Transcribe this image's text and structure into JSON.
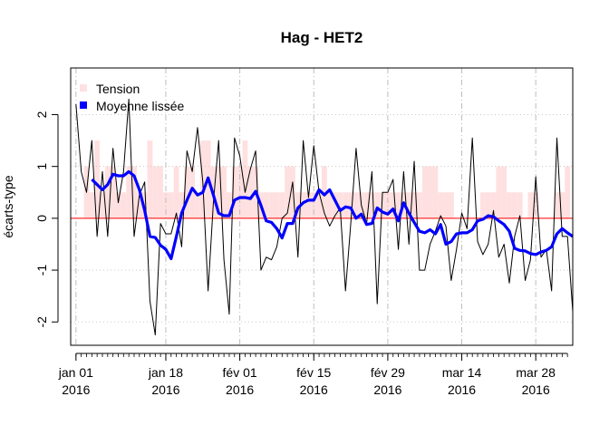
{
  "chart_data": {
    "type": "line",
    "title": "Hag - HET2",
    "xlabel": "",
    "ylabel": "écarts-type",
    "x_type": "date",
    "xlim": [
      "2015-12-31",
      "2016-04-04"
    ],
    "ylim": [
      -2.45,
      2.9
    ],
    "y_ticks": [
      -2,
      -1,
      0,
      1,
      2
    ],
    "x_ticks": [
      {
        "date": "2016-01-01",
        "label": "jan 01",
        "year": "2016"
      },
      {
        "date": "2016-01-18",
        "label": "jan 18",
        "year": "2016"
      },
      {
        "date": "2016-02-01",
        "label": "fév 01",
        "year": "2016"
      },
      {
        "date": "2016-02-15",
        "label": "fév 15",
        "year": "2016"
      },
      {
        "date": "2016-02-29",
        "label": "fév 29",
        "year": "2016"
      },
      {
        "date": "2016-03-14",
        "label": "mar 14",
        "year": "2016"
      },
      {
        "date": "2016-03-28",
        "label": "mar 28",
        "year": "2016"
      }
    ],
    "grid": true,
    "reference_line": {
      "y": 0,
      "color": "#ff0000"
    },
    "legend": {
      "position": "top-left",
      "entries": [
        "Tension",
        "Moyenne lissée"
      ]
    },
    "series": [
      {
        "name": "Tension",
        "kind": "bars",
        "color": "#ffe0e0",
        "start_date": "2016-01-01",
        "values": [
          0.0,
          0.0,
          1.0,
          0.5,
          1.5,
          0.5,
          1.0,
          1.0,
          0.5,
          0.5,
          1.0,
          1.0,
          0.5,
          0.5,
          1.5,
          1.0,
          1.0,
          0.5,
          0.5,
          1.0,
          0.5,
          1.0,
          1.0,
          0.5,
          1.5,
          1.5,
          1.0,
          1.0,
          1.0,
          0.5,
          1.0,
          1.0,
          1.5,
          1.0,
          1.0,
          0.5,
          0.5,
          0.5,
          0.5,
          0.5,
          1.0,
          1.0,
          0.5,
          0.5,
          0.5,
          0.5,
          0.5,
          1.0,
          0.5,
          0.5,
          0.5,
          0.5,
          0.5,
          0.5,
          0.5,
          0.5,
          0.5,
          0.5,
          0.5,
          0.5,
          0.5,
          0.5,
          0.5,
          0.5,
          0.5,
          0.5,
          1.0,
          1.0,
          1.0,
          0.5,
          0.5,
          0.5,
          0.0,
          0.0,
          0.0,
          0.0,
          0.0,
          0.5,
          0.5,
          0.5,
          1.0,
          1.0,
          0.5,
          0.5,
          0.5,
          0.0,
          0.5,
          0.5,
          0.0,
          0.0,
          0.0,
          0.5,
          0.5,
          1.0,
          0.0,
          0.0,
          0.0,
          0.0
        ]
      },
      {
        "name": "",
        "kind": "line",
        "color": "#000000",
        "start_date": "2016-01-01",
        "values": [
          2.2,
          0.9,
          0.5,
          1.5,
          -0.35,
          0.9,
          -0.35,
          1.35,
          0.3,
          0.9,
          2.3,
          -0.35,
          0.45,
          0.7,
          -1.6,
          -2.25,
          -0.1,
          -0.3,
          -0.3,
          0.1,
          -0.55,
          1.3,
          0.9,
          1.75,
          0.7,
          -1.4,
          0.3,
          1.5,
          -0.8,
          -1.85,
          1.55,
          1.2,
          0.5,
          0.95,
          1.3,
          -1.0,
          -0.75,
          -0.8,
          -0.55,
          0.0,
          0.1,
          0.7,
          -0.75,
          1.5,
          0.4,
          1.4,
          0.5,
          0.1,
          -0.15,
          0.05,
          0.2,
          -1.4,
          -0.1,
          1.35,
          0.25,
          -0.1,
          0.9,
          -1.65,
          0.5,
          0.5,
          0.75,
          -0.6,
          0.9,
          -0.5,
          1.1,
          -1.0,
          -1.0,
          -0.5,
          -0.25,
          0.05,
          -0.15,
          -1.2,
          -0.6,
          0.1,
          -0.2,
          1.55,
          -0.45,
          -0.7,
          -0.5,
          0.15,
          -0.75,
          -0.5,
          -1.25,
          -0.35,
          0.05,
          -1.2,
          -0.8,
          0.8,
          -0.75,
          -0.6,
          -1.4,
          1.55,
          -0.35,
          -0.35,
          -1.8
        ]
      },
      {
        "name": "Moyenne lissée",
        "kind": "line",
        "color": "#0000ff",
        "start_date": "2016-01-04",
        "values": [
          0.75,
          0.65,
          0.55,
          0.65,
          0.85,
          0.82,
          0.82,
          0.9,
          0.82,
          0.55,
          0.15,
          -0.35,
          -0.37,
          -0.52,
          -0.6,
          -0.78,
          -0.35,
          0.1,
          0.35,
          0.58,
          0.45,
          0.5,
          0.78,
          0.45,
          0.1,
          0.05,
          0.05,
          0.35,
          0.4,
          0.4,
          0.38,
          0.52,
          0.25,
          -0.05,
          -0.08,
          -0.2,
          -0.38,
          -0.1,
          -0.1,
          0.2,
          0.3,
          0.35,
          0.35,
          0.55,
          0.45,
          0.55,
          0.35,
          0.15,
          0.22,
          0.2,
          0.0,
          0.08,
          -0.12,
          -0.1,
          0.2,
          0.12,
          0.08,
          0.18,
          -0.05,
          0.3,
          0.1,
          -0.08,
          -0.25,
          -0.28,
          -0.22,
          -0.3,
          -0.12,
          -0.5,
          -0.45,
          -0.3,
          -0.28,
          -0.28,
          -0.22,
          -0.05,
          -0.02,
          0.05,
          0.03,
          -0.05,
          -0.12,
          -0.25,
          -0.58,
          -0.62,
          -0.63,
          -0.68,
          -0.7,
          -0.65,
          -0.62,
          -0.55,
          -0.3,
          -0.2,
          -0.28,
          -0.35
        ]
      }
    ]
  }
}
